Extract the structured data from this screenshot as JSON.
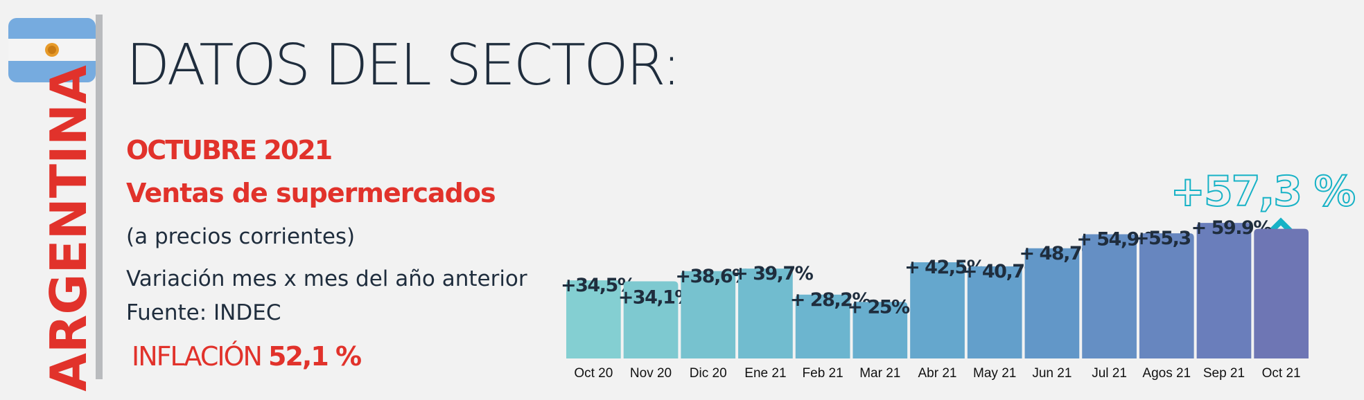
{
  "header": {
    "country": "ARGENTINA",
    "title": "DATOS DEL SECTOR:",
    "month": "OCTUBRE 2021",
    "subject": "Ventas de supermercados",
    "note": "(a precios corrientes)",
    "description": "Variación mes x mes del año anterior",
    "source": "Fuente: INDEC",
    "inflation_label": "INFLACIÓN",
    "inflation_value": "52,1 %"
  },
  "chart_data": {
    "type": "bar",
    "categories": [
      "Oct 20",
      "Nov 20",
      "Dic 20",
      "Ene 21",
      "Feb 21",
      "Mar 21",
      "Abr 21",
      "May 21",
      "Jun 21",
      "Jul 21",
      "Agos 21",
      "Sep 21",
      "Oct 21"
    ],
    "values": [
      34.5,
      34.1,
      38.6,
      39.7,
      28.2,
      25,
      42.5,
      40.7,
      48.7,
      54.9,
      55.3,
      59.9,
      57.3
    ],
    "value_labels": [
      "+34,5%",
      "+34,1%",
      "+38,6%",
      "+ 39,7%",
      "+ 28,2%",
      "+ 25%",
      "+ 42,5%",
      "+ 40,7%",
      "+ 48,7%",
      "+ 54,9 %",
      "+55,3",
      "+ 59.9%",
      "+57,3 %"
    ],
    "colors": [
      "#84cfd2",
      "#7ec9d0",
      "#77c2cf",
      "#71bccf",
      "#6cb5cf",
      "#68aece",
      "#65a7cd",
      "#639fcb",
      "#6297c8",
      "#658fc4",
      "#6786bf",
      "#6a7ebb",
      "#6e76b4"
    ]
  }
}
